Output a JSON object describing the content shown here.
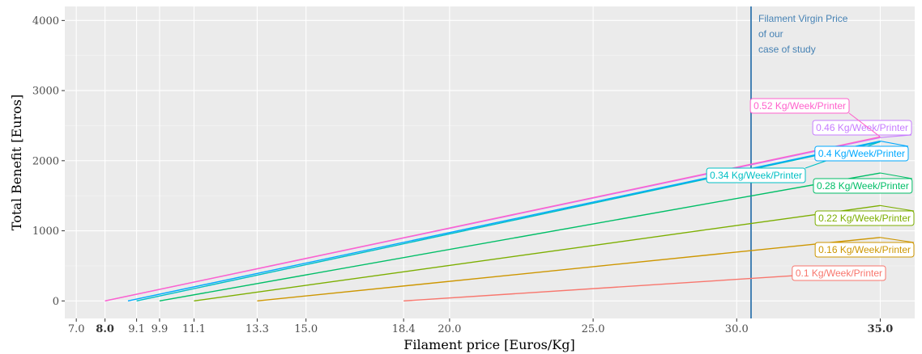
{
  "chart_data": {
    "type": "line",
    "xlabel": "Filament price [Euros/Kg]",
    "ylabel": "Total Benefit [Euros]",
    "xlim": [
      6.6,
      36.2
    ],
    "ylim": [
      -250,
      4200
    ],
    "grid": true,
    "x_ticks": [
      {
        "value": 7.0,
        "label": "7.0",
        "bold": false
      },
      {
        "value": 8.0,
        "label": "8.0",
        "bold": true
      },
      {
        "value": 9.1,
        "label": "9.1",
        "bold": false
      },
      {
        "value": 9.9,
        "label": "9.9",
        "bold": false
      },
      {
        "value": 11.1,
        "label": "11.1",
        "bold": false
      },
      {
        "value": 13.3,
        "label": "13.3",
        "bold": false
      },
      {
        "value": 15.0,
        "label": "15.0",
        "bold": false
      },
      {
        "value": 18.4,
        "label": "18.4",
        "bold": false
      },
      {
        "value": 20.0,
        "label": "20.0",
        "bold": false
      },
      {
        "value": 25.0,
        "label": "25.0",
        "bold": false
      },
      {
        "value": 30.0,
        "label": "30.0",
        "bold": false
      },
      {
        "value": 35.0,
        "label": "35.0",
        "bold": true
      }
    ],
    "y_ticks": [
      {
        "value": 0,
        "label": "0"
      },
      {
        "value": 1000,
        "label": "1000"
      },
      {
        "value": 2000,
        "label": "2000"
      },
      {
        "value": 3000,
        "label": "3000"
      },
      {
        "value": 4000,
        "label": "4000"
      }
    ],
    "vline": {
      "x": 30.5,
      "color": "#4682b4",
      "annotation": [
        "Filament Virgin Price",
        "of our",
        "case of study"
      ]
    },
    "series": [
      {
        "name": "0.1 Kg/Week/Printer",
        "color": "#f8766d",
        "x": [
          18.4,
          35.0
        ],
        "y": [
          0,
          440
        ]
      },
      {
        "name": "0.16 Kg/Week/Printer",
        "color": "#cd9600",
        "x": [
          13.3,
          35.0
        ],
        "y": [
          0,
          905
        ]
      },
      {
        "name": "0.22 Kg/Week/Printer",
        "color": "#7cae00",
        "x": [
          11.1,
          35.0
        ],
        "y": [
          0,
          1360
        ]
      },
      {
        "name": "0.28 Kg/Week/Printer",
        "color": "#00be67",
        "x": [
          9.9,
          35.0
        ],
        "y": [
          0,
          1825
        ]
      },
      {
        "name": "0.34 Kg/Week/Printer",
        "color": "#00bfc4",
        "x": [
          9.1,
          35.0
        ],
        "y": [
          0,
          2270
        ]
      },
      {
        "name": "0.4 Kg/Week/Printer",
        "color": "#00a9ff",
        "x": [
          8.8,
          35.0
        ],
        "y": [
          0,
          2280
        ]
      },
      {
        "name": "0.46 Kg/Week/Printer",
        "color": "#c77cff",
        "x": [
          8.0,
          35.0
        ],
        "y": [
          0,
          2330
        ]
      },
      {
        "name": "0.52 Kg/Week/Printer",
        "color": "#ff61cc",
        "x": [
          8.0,
          35.0
        ],
        "y": [
          0,
          2340
        ]
      }
    ]
  }
}
